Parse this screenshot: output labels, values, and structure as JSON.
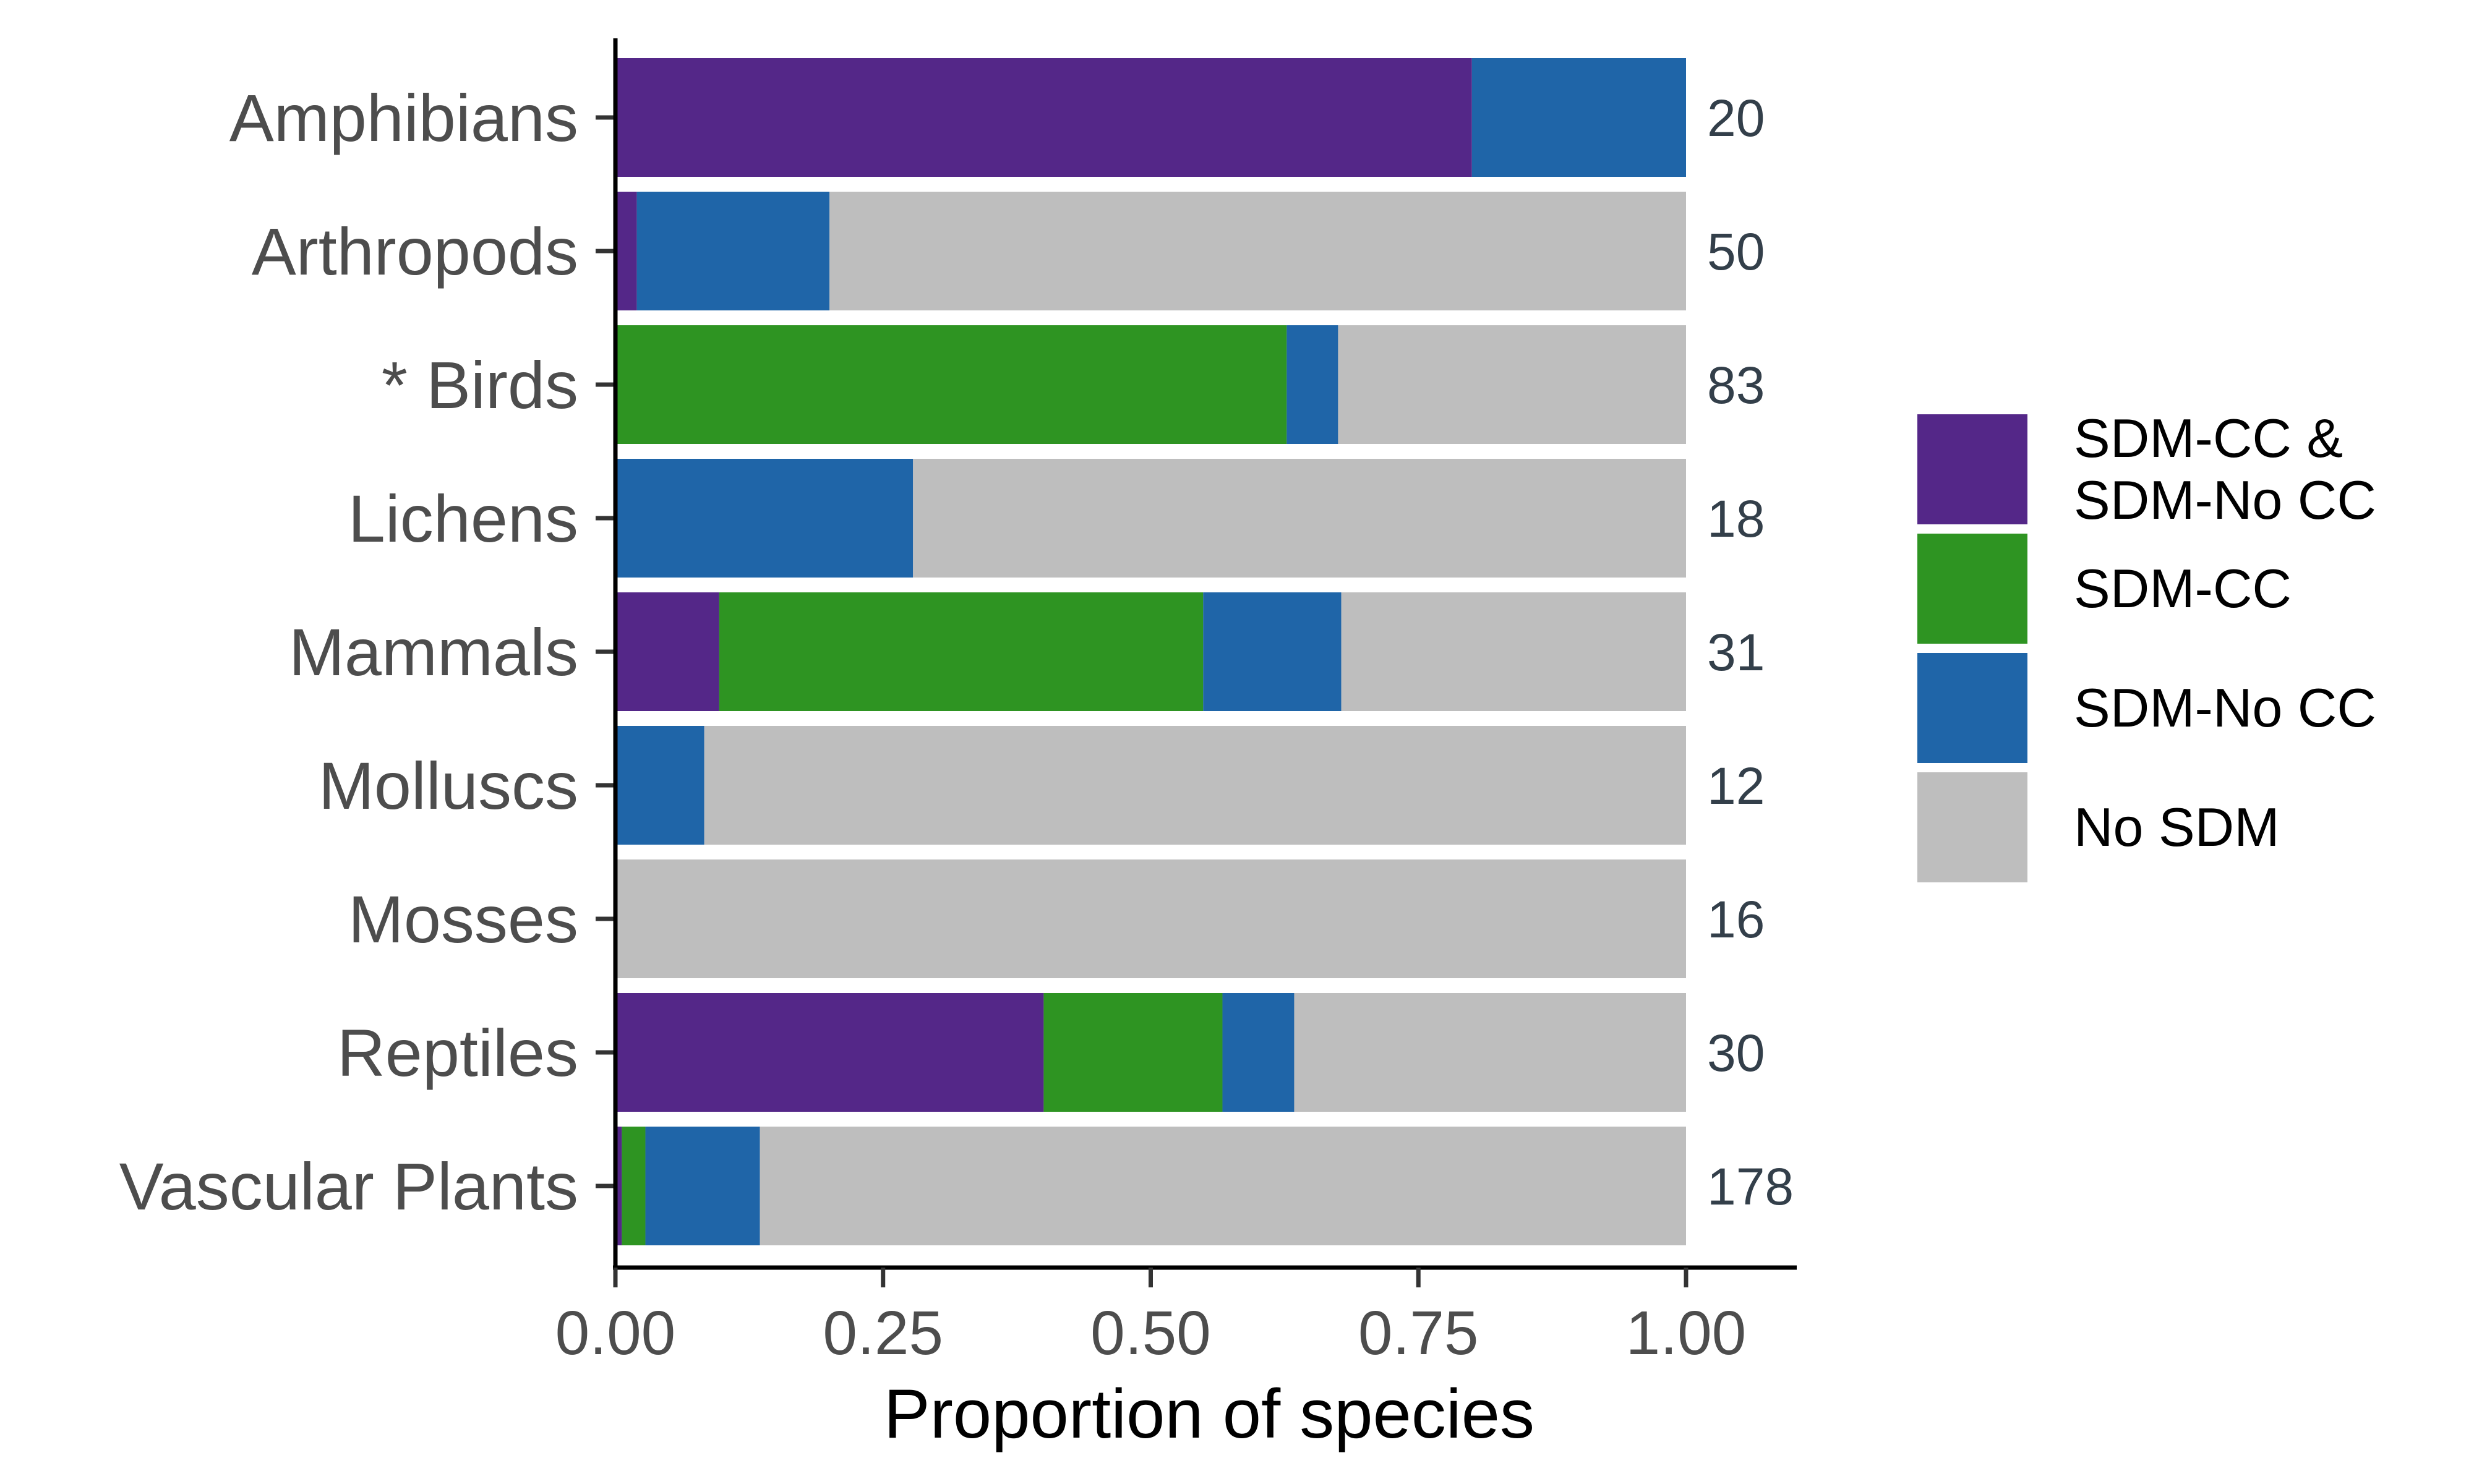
{
  "chart_data": {
    "type": "bar",
    "orientation": "horizontal",
    "stacked": true,
    "xlabel": "Proportion of species",
    "ylabel": "",
    "xlim": [
      0,
      1.1
    ],
    "xticks": [
      0,
      0.25,
      0.5,
      0.75,
      1
    ],
    "xtick_labels": [
      "0.00",
      "0.25",
      "0.50",
      "0.75",
      "1.00"
    ],
    "grid": false,
    "legend_position": "right",
    "categories": [
      "Amphibians",
      "Arthropods",
      "* Birds",
      "Lichens",
      "Mammals",
      "Molluscs",
      "Mosses",
      "Reptiles",
      "Vascular Plants"
    ],
    "counts": [
      "20",
      "50",
      "83",
      "18",
      "31",
      "12",
      "16",
      "30",
      "178"
    ],
    "series": [
      {
        "name": "SDM-CC & SDM-No CC",
        "legend_lines": [
          "SDM-CC &",
          "SDM-No CC"
        ],
        "color": "#542788",
        "values": [
          0.8,
          0.02,
          0,
          0,
          0.097,
          0,
          0,
          0.4,
          0.006
        ]
      },
      {
        "name": "SDM-CC",
        "legend_lines": [
          "SDM-CC"
        ],
        "color": "#2e9422",
        "values": [
          0,
          0,
          0.627,
          0,
          0.452,
          0,
          0,
          0.167,
          0.022
        ]
      },
      {
        "name": "SDM-No CC",
        "legend_lines": [
          "SDM-No CC"
        ],
        "color": "#1f65a8",
        "values": [
          0.2,
          0.18,
          0.048,
          0.278,
          0.129,
          0.083,
          0,
          0.067,
          0.107
        ]
      },
      {
        "name": "No SDM",
        "legend_lines": [
          "No SDM"
        ],
        "color": "#bebebe",
        "values": [
          0,
          0.8,
          0.325,
          0.722,
          0.322,
          0.917,
          1.0,
          0.366,
          0.865
        ]
      }
    ]
  }
}
